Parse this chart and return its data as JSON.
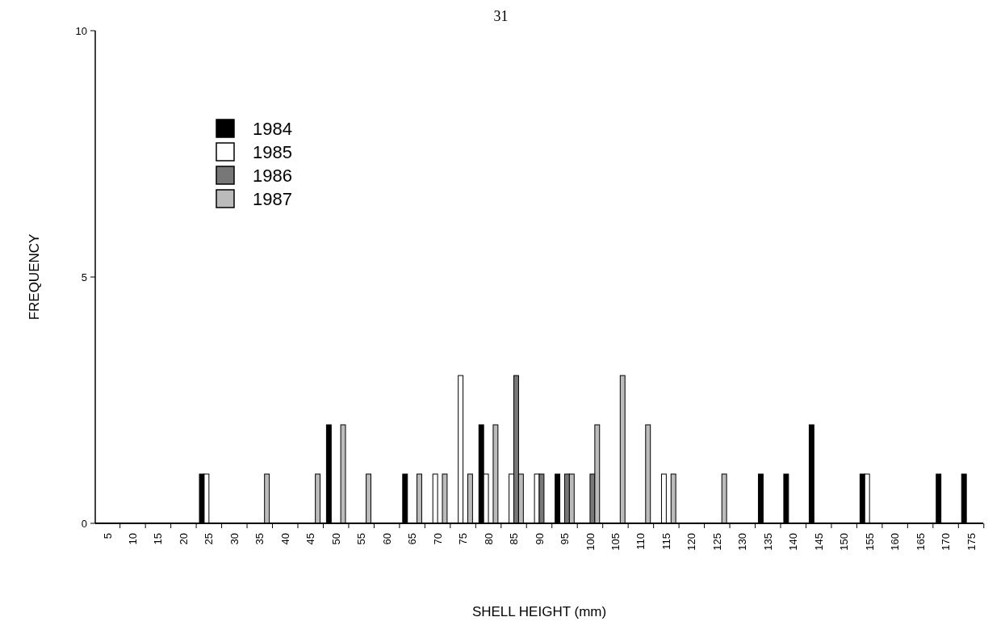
{
  "chart_data": {
    "type": "bar",
    "xlabel": "SHELL HEIGHT (mm)",
    "ylabel": "FREQUENCY",
    "annotations": [
      "31"
    ],
    "categories": [
      "5",
      "10",
      "15",
      "20",
      "25",
      "30",
      "35",
      "40",
      "45",
      "50",
      "55",
      "60",
      "65",
      "70",
      "75",
      "80",
      "85",
      "90",
      "95",
      "100",
      "105",
      "110",
      "115",
      "120",
      "125",
      "130",
      "135",
      "140",
      "145",
      "150",
      "155",
      "160",
      "165",
      "170",
      "175"
    ],
    "series": [
      {
        "name": "1984",
        "color": "#000000",
        "values": [
          0,
          0,
          0,
          0,
          1,
          0,
          0,
          0,
          0,
          2,
          0,
          0,
          1,
          0,
          0,
          2,
          0,
          0,
          1,
          0,
          0,
          0,
          0,
          0,
          0,
          0,
          1,
          1,
          2,
          0,
          1,
          0,
          0,
          1,
          1
        ]
      },
      {
        "name": "1985",
        "color": "#ffffff",
        "values": [
          0,
          0,
          0,
          0,
          1,
          0,
          0,
          0,
          0,
          0,
          0,
          0,
          0,
          1,
          3,
          1,
          1,
          1,
          0,
          0,
          0,
          0,
          1,
          0,
          0,
          0,
          0,
          0,
          0,
          0,
          1,
          0,
          0,
          0,
          0
        ]
      },
      {
        "name": "1986",
        "color": "#777777",
        "values": [
          0,
          0,
          0,
          0,
          0,
          0,
          0,
          0,
          0,
          0,
          0,
          0,
          0,
          0,
          0,
          0,
          3,
          1,
          1,
          1,
          0,
          0,
          0,
          0,
          0,
          0,
          0,
          0,
          0,
          0,
          0,
          0,
          0,
          0,
          0
        ]
      },
      {
        "name": "1987",
        "color": "#bbbbbb",
        "values": [
          0,
          0,
          0,
          0,
          0,
          0,
          1,
          0,
          1,
          2,
          1,
          0,
          1,
          1,
          1,
          2,
          1,
          0,
          1,
          2,
          3,
          2,
          1,
          0,
          1,
          0,
          0,
          0,
          0,
          0,
          0,
          0,
          0,
          0,
          0
        ]
      }
    ],
    "ylim": [
      0,
      10
    ],
    "yticks": [
      0,
      5,
      10
    ],
    "grid": false,
    "legend": "top left"
  }
}
